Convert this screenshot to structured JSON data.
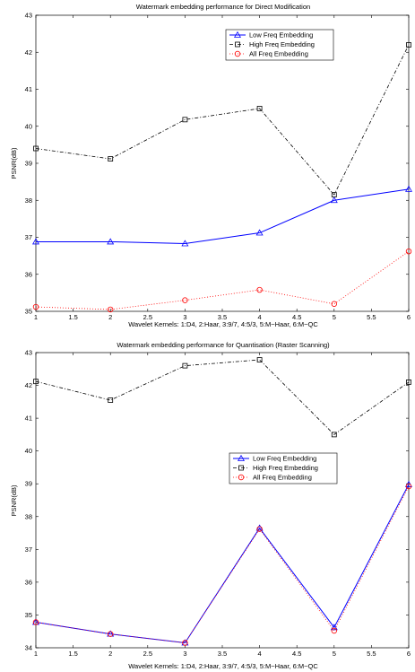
{
  "chart_data": [
    {
      "type": "line",
      "title": "Watermark embedding performance for Direct Modification",
      "xlabel": "Wavelet Kernels: 1:D4, 2:Haar, 3:9/7, 4:5/3, 5:M−Haar, 6:M−QC",
      "ylabel": "PSNR(dB)",
      "xlim": [
        1,
        6
      ],
      "ylim": [
        35,
        43
      ],
      "xticks": [
        1,
        1.5,
        2,
        2.5,
        3,
        3.5,
        4,
        4.5,
        5,
        5.5,
        6
      ],
      "xtick_labels": [
        "1",
        "1.5",
        "2",
        "2.5",
        "3",
        "3.5",
        "4",
        "4.5",
        "5",
        "5.5",
        "6"
      ],
      "yticks": [
        35,
        36,
        37,
        38,
        39,
        40,
        41,
        42,
        43
      ],
      "ytick_labels": [
        "35",
        "36",
        "37",
        "38",
        "39",
        "40",
        "41",
        "42",
        "43"
      ],
      "grid": false,
      "legend_position": "top-right",
      "x": [
        1,
        2,
        3,
        4,
        5,
        6
      ],
      "series": [
        {
          "name": "Low Freq Embedding",
          "values": [
            36.88,
            36.88,
            36.83,
            37.12,
            38.0,
            38.3
          ],
          "color": "#0000ff",
          "marker": "triangle",
          "dash": "solid"
        },
        {
          "name": "High Freq Embedding",
          "values": [
            39.4,
            39.12,
            40.18,
            40.48,
            38.15,
            42.2
          ],
          "color": "#000000",
          "marker": "square",
          "dash": "dashdot"
        },
        {
          "name": "All Freq Embedding",
          "values": [
            35.12,
            35.05,
            35.3,
            35.58,
            35.2,
            36.62
          ],
          "color": "#ff0000",
          "marker": "circle",
          "dash": "dotted"
        }
      ]
    },
    {
      "type": "line",
      "title": "Watermark embedding performance for Quantisation (Raster Scanning)",
      "xlabel": "Wavelet Kernels: 1:D4, 2:Haar, 3:9/7, 4:5/3, 5:M−Haar, 6:M−QC",
      "ylabel": "PSNR(dB)",
      "xlim": [
        1,
        6
      ],
      "ylim": [
        34,
        43
      ],
      "xticks": [
        1,
        1.5,
        2,
        2.5,
        3,
        3.5,
        4,
        4.5,
        5,
        5.5,
        6
      ],
      "xtick_labels": [
        "1",
        "1.5",
        "2",
        "2.5",
        "3",
        "3.5",
        "4",
        "4.5",
        "5",
        "5.5",
        "6"
      ],
      "yticks": [
        34,
        35,
        36,
        37,
        38,
        39,
        40,
        41,
        42,
        43
      ],
      "ytick_labels": [
        "34",
        "35",
        "36",
        "37",
        "38",
        "39",
        "40",
        "41",
        "42",
        "43"
      ],
      "grid": false,
      "legend_position": "center-right",
      "x": [
        1,
        2,
        3,
        4,
        5,
        6
      ],
      "series": [
        {
          "name": "Low Freq Embedding",
          "values": [
            34.78,
            34.42,
            34.15,
            37.65,
            34.62,
            38.98
          ],
          "color": "#0000ff",
          "marker": "triangle",
          "dash": "solid"
        },
        {
          "name": "High Freq Embedding",
          "values": [
            42.12,
            41.55,
            42.6,
            42.78,
            40.5,
            42.1
          ],
          "color": "#000000",
          "marker": "square",
          "dash": "dashdot"
        },
        {
          "name": "All Freq Embedding",
          "values": [
            34.78,
            34.42,
            34.15,
            37.62,
            34.52,
            38.92
          ],
          "color": "#ff0000",
          "marker": "circle",
          "dash": "dotted"
        }
      ]
    }
  ]
}
